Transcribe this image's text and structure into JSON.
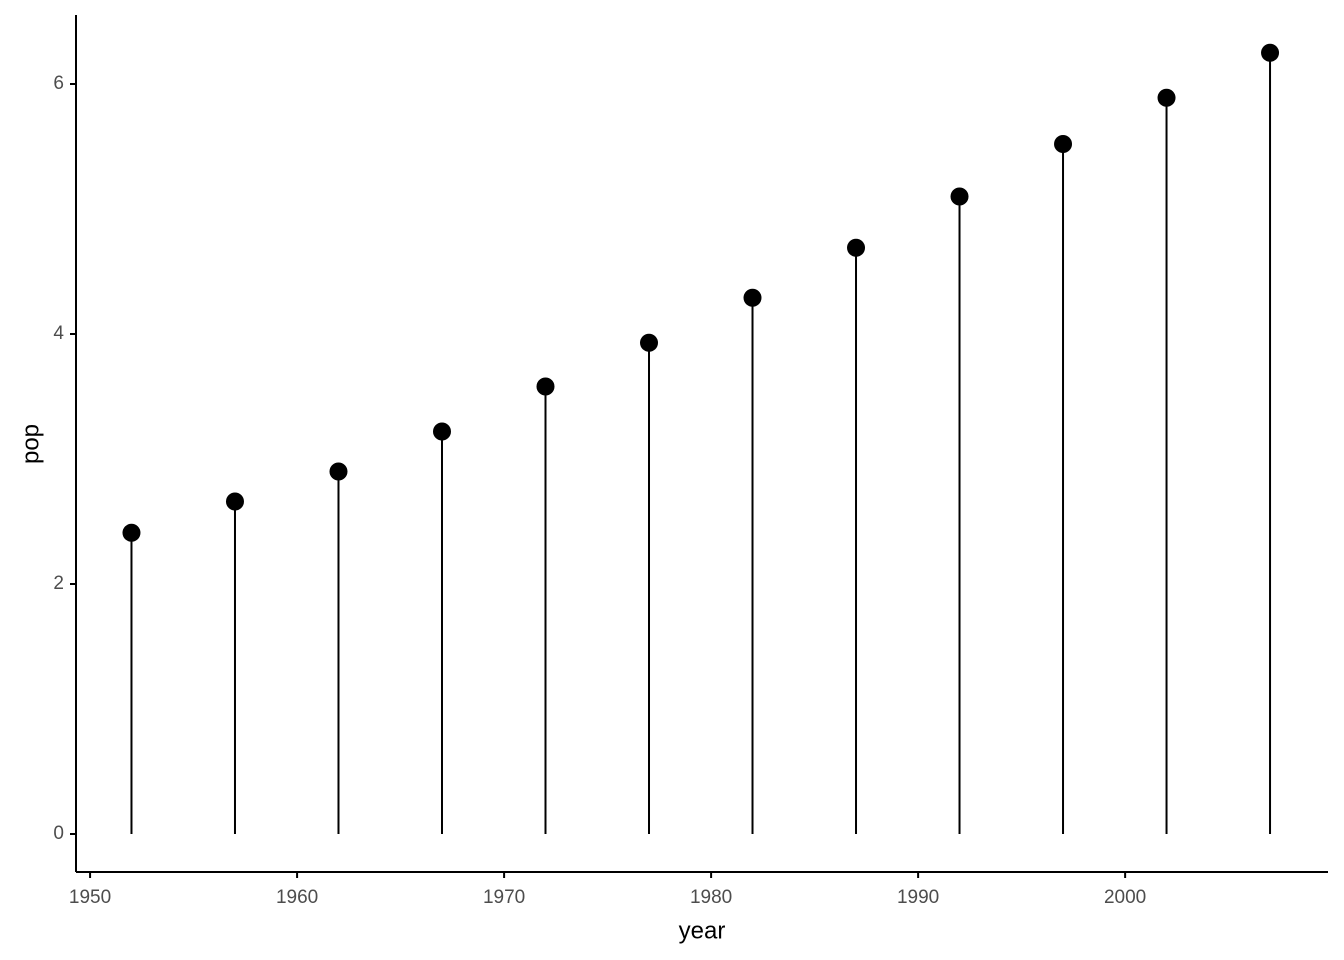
{
  "chart_data": {
    "type": "lollipop",
    "x_label": "year",
    "y_label": "pop",
    "x": [
      1952,
      1957,
      1962,
      1967,
      1972,
      1977,
      1982,
      1987,
      1992,
      1997,
      2002,
      2007
    ],
    "values": [
      2.41,
      2.66,
      2.9,
      3.22,
      3.58,
      3.93,
      4.29,
      4.69,
      5.1,
      5.52,
      5.89,
      6.25
    ],
    "color": "#000000",
    "xlim": [
      1949.32,
      2009.8
    ],
    "xticks": [
      1950,
      1960,
      1970,
      1980,
      1990,
      2000
    ],
    "ylim": [
      -0.304,
      6.552
    ],
    "yticks": [
      0,
      2,
      4,
      6
    ],
    "grid": false
  }
}
